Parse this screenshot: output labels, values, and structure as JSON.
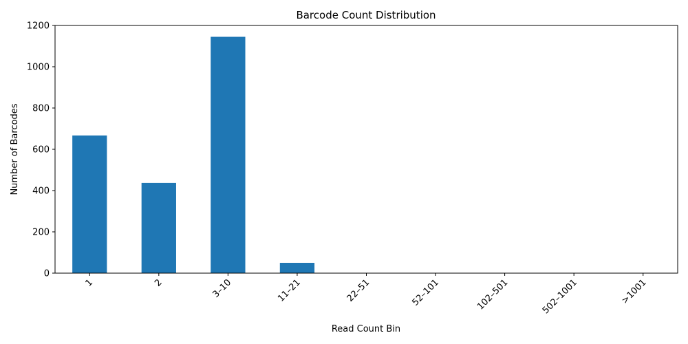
{
  "chart_data": {
    "type": "bar",
    "title": "Barcode Count Distribution",
    "xlabel": "Read Count Bin",
    "ylabel": "Number of Barcodes",
    "categories": [
      "1",
      "2",
      "3–10",
      "11–21",
      "22–51",
      "52–101",
      "102–501",
      "502–1001",
      ">1001"
    ],
    "values": [
      667,
      437,
      1145,
      50,
      0,
      0,
      0,
      0,
      0
    ],
    "ylim": [
      0,
      1200
    ],
    "yticks": [
      0,
      200,
      400,
      600,
      800,
      1000,
      1200
    ],
    "xtick_rotation": 45,
    "grid": false,
    "legend": "none",
    "bar_color": "#1f77b4"
  }
}
